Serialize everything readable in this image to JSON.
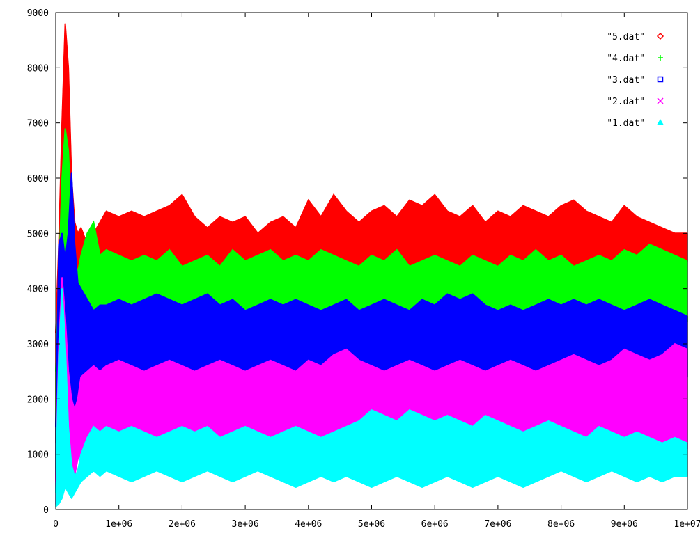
{
  "chart_data": {
    "type": "area",
    "title": "",
    "xlabel": "",
    "ylabel": "",
    "xlim": [
      0,
      10000000
    ],
    "ylim": [
      0,
      9000
    ],
    "grid": false,
    "legend_position": "top-right",
    "x_ticks": [
      "0",
      "1e+06",
      "2e+06",
      "3e+06",
      "4e+06",
      "5e+06",
      "6e+06",
      "7e+06",
      "8e+06",
      "9e+06",
      "1e+07"
    ],
    "x_tick_values": [
      0,
      1000000,
      2000000,
      3000000,
      4000000,
      5000000,
      6000000,
      7000000,
      8000000,
      9000000,
      10000000
    ],
    "y_ticks": [
      "0",
      "1000",
      "2000",
      "3000",
      "4000",
      "5000",
      "6000",
      "7000",
      "8000",
      "9000"
    ],
    "y_tick_values": [
      0,
      1000,
      2000,
      3000,
      4000,
      5000,
      6000,
      7000,
      8000,
      9000
    ],
    "x": [
      0,
      50000,
      100000,
      150000,
      200000,
      250000,
      300000,
      350000,
      400000,
      500000,
      600000,
      700000,
      800000,
      1000000,
      1200000,
      1400000,
      1600000,
      1800000,
      2000000,
      2200000,
      2400000,
      2600000,
      2800000,
      3000000,
      3200000,
      3400000,
      3600000,
      3800000,
      4000000,
      4200000,
      4400000,
      4600000,
      4800000,
      5000000,
      5200000,
      5400000,
      5600000,
      5800000,
      6000000,
      6200000,
      6400000,
      6600000,
      6800000,
      7000000,
      7200000,
      7400000,
      7600000,
      7800000,
      8000000,
      8200000,
      8400000,
      8600000,
      8800000,
      9000000,
      9200000,
      9400000,
      9600000,
      9800000,
      10000000
    ],
    "series": [
      {
        "name": "\"5.dat\"",
        "color": "#ff0000",
        "marker": "diamond",
        "upper": [
          3200,
          4800,
          7000,
          8800,
          8000,
          6000,
          5200,
          5000,
          5100,
          4800,
          5000,
          5200,
          5400,
          5300,
          5400,
          5300,
          5400,
          5500,
          5700,
          5300,
          5100,
          5300,
          5200,
          5300,
          5000,
          5200,
          5300,
          5100,
          5600,
          5300,
          5700,
          5400,
          5200,
          5400,
          5500,
          5300,
          5600,
          5500,
          5700,
          5400,
          5300,
          5500,
          5200,
          5400,
          5300,
          5500,
          5400,
          5300,
          5500,
          5600,
          5400,
          5300,
          5200,
          5500,
          5300,
          5200,
          5100,
          5000,
          5000
        ],
        "lower": [
          1200,
          2500,
          3500,
          4200,
          4000,
          3800,
          4000,
          4000,
          4100,
          4200,
          4200,
          4300,
          4300,
          4400,
          4300,
          4400,
          4300,
          4200,
          4100,
          4300,
          4400,
          4200,
          4400,
          4300,
          4500,
          4400,
          4300,
          4500,
          4200,
          4300,
          4400,
          4300,
          4400,
          4200,
          4100,
          4300,
          4200,
          4300,
          4400,
          4200,
          4300,
          4300,
          4400,
          4200,
          4300,
          4200,
          4300,
          4400,
          4200,
          4100,
          4300,
          4200,
          3900,
          4200,
          4300,
          4300,
          4400,
          4500,
          4500
        ]
      },
      {
        "name": "\"4.dat\"",
        "color": "#00ff00",
        "marker": "plus",
        "upper": [
          2500,
          4200,
          6000,
          6900,
          6500,
          5200,
          4500,
          4300,
          4600,
          5000,
          5200,
          4600,
          4700,
          4600,
          4500,
          4600,
          4500,
          4700,
          4400,
          4500,
          4600,
          4400,
          4700,
          4500,
          4600,
          4700,
          4500,
          4600,
          4500,
          4700,
          4600,
          4500,
          4400,
          4600,
          4500,
          4700,
          4400,
          4500,
          4600,
          4500,
          4400,
          4600,
          4500,
          4400,
          4600,
          4500,
          4700,
          4500,
          4600,
          4400,
          4500,
          4600,
          4500,
          4700,
          4600,
          4800,
          4700,
          4600,
          4500
        ],
        "lower": [
          500,
          1000,
          1500,
          2000,
          1500,
          1000,
          900,
          3000,
          3200,
          3400,
          3500,
          3400,
          3500,
          3500,
          3400,
          3500,
          3300,
          3400,
          3500,
          3400,
          3500,
          3600,
          3400,
          3500,
          3400,
          3300,
          3500,
          3400,
          3300,
          3500,
          3400,
          3200,
          3400,
          3500,
          3400,
          3500,
          3400,
          3500,
          3400,
          3500,
          3300,
          3400,
          3500,
          3400,
          3300,
          3000,
          3400,
          3500,
          3400,
          3300,
          3500,
          3400,
          3300,
          3400,
          3500,
          3400,
          3300,
          3400,
          3400
        ]
      },
      {
        "name": "\"3.dat\"",
        "color": "#0000ff",
        "marker": "square",
        "upper": [
          1500,
          4800,
          5000,
          4500,
          5000,
          6100,
          4800,
          4100,
          4000,
          3800,
          3600,
          3700,
          3700,
          3800,
          3700,
          3800,
          3900,
          3800,
          3700,
          3800,
          3900,
          3700,
          3800,
          3600,
          3700,
          3800,
          3700,
          3800,
          3700,
          3600,
          3700,
          3800,
          3600,
          3700,
          3800,
          3700,
          3600,
          3800,
          3700,
          3900,
          3800,
          3900,
          3700,
          3600,
          3700,
          3600,
          3700,
          3800,
          3700,
          3800,
          3700,
          3800,
          3700,
          3600,
          3700,
          3800,
          3700,
          3600,
          3500
        ],
        "lower": [
          300,
          1200,
          1500,
          2000,
          1200,
          800,
          900,
          1200,
          2200,
          2300,
          2400,
          2300,
          2400,
          2300,
          2400,
          2300,
          2200,
          2300,
          2400,
          2300,
          2200,
          2300,
          2400,
          2300,
          2200,
          2300,
          2400,
          2300,
          2200,
          2300,
          2400,
          2500,
          2400,
          2300,
          2400,
          2500,
          2400,
          2300,
          2200,
          2300,
          2400,
          2500,
          2300,
          2200,
          2300,
          2400,
          2300,
          2200,
          2300,
          2400,
          2300,
          2200,
          2300,
          2400,
          2300,
          2200,
          2300,
          2400,
          2400
        ]
      },
      {
        "name": "\"2.dat\"",
        "color": "#ff00ff",
        "marker": "cross",
        "upper": [
          500,
          3000,
          4200,
          3500,
          2500,
          2000,
          1800,
          2000,
          2400,
          2500,
          2600,
          2500,
          2600,
          2700,
          2600,
          2500,
          2600,
          2700,
          2600,
          2500,
          2600,
          2700,
          2600,
          2500,
          2600,
          2700,
          2600,
          2500,
          2700,
          2600,
          2800,
          2900,
          2700,
          2600,
          2500,
          2600,
          2700,
          2600,
          2500,
          2600,
          2700,
          2600,
          2500,
          2600,
          2700,
          2600,
          2500,
          2600,
          2700,
          2800,
          2700,
          2600,
          2700,
          2900,
          2800,
          2700,
          2800,
          3000,
          2900
        ],
        "lower": [
          100,
          300,
          500,
          700,
          500,
          400,
          600,
          900,
          1000,
          1100,
          1200,
          1100,
          1200,
          1100,
          1200,
          1100,
          1000,
          1100,
          1200,
          1100,
          1200,
          1100,
          1200,
          1100,
          1200,
          1100,
          1200,
          1100,
          1200,
          1100,
          1200,
          1100,
          1200,
          1100,
          1200,
          1100,
          1200,
          1100,
          1200,
          1100,
          1200,
          1100,
          1000,
          1100,
          1200,
          1100,
          1000,
          1100,
          1200,
          1100,
          1000,
          1100,
          1200,
          1100,
          1000,
          1100,
          1000,
          1100,
          1100
        ]
      },
      {
        "name": "\"1.dat\"",
        "color": "#00ffff",
        "marker": "triangle",
        "upper": [
          300,
          2800,
          4000,
          3000,
          1500,
          800,
          600,
          700,
          1000,
          1300,
          1500,
          1400,
          1500,
          1400,
          1500,
          1400,
          1300,
          1400,
          1500,
          1400,
          1500,
          1300,
          1400,
          1500,
          1400,
          1300,
          1400,
          1500,
          1400,
          1300,
          1400,
          1500,
          1600,
          1800,
          1700,
          1600,
          1800,
          1700,
          1600,
          1700,
          1600,
          1500,
          1700,
          1600,
          1500,
          1400,
          1500,
          1600,
          1500,
          1400,
          1300,
          1500,
          1400,
          1300,
          1400,
          1300,
          1200,
          1300,
          1200
        ],
        "lower": [
          50,
          100,
          200,
          400,
          300,
          200,
          300,
          400,
          500,
          600,
          700,
          600,
          700,
          600,
          500,
          600,
          700,
          600,
          500,
          600,
          700,
          600,
          500,
          600,
          700,
          600,
          500,
          400,
          500,
          600,
          500,
          600,
          500,
          400,
          500,
          600,
          500,
          400,
          500,
          600,
          500,
          400,
          500,
          600,
          500,
          400,
          500,
          600,
          700,
          600,
          500,
          600,
          700,
          600,
          500,
          600,
          500,
          600,
          600
        ]
      }
    ]
  }
}
